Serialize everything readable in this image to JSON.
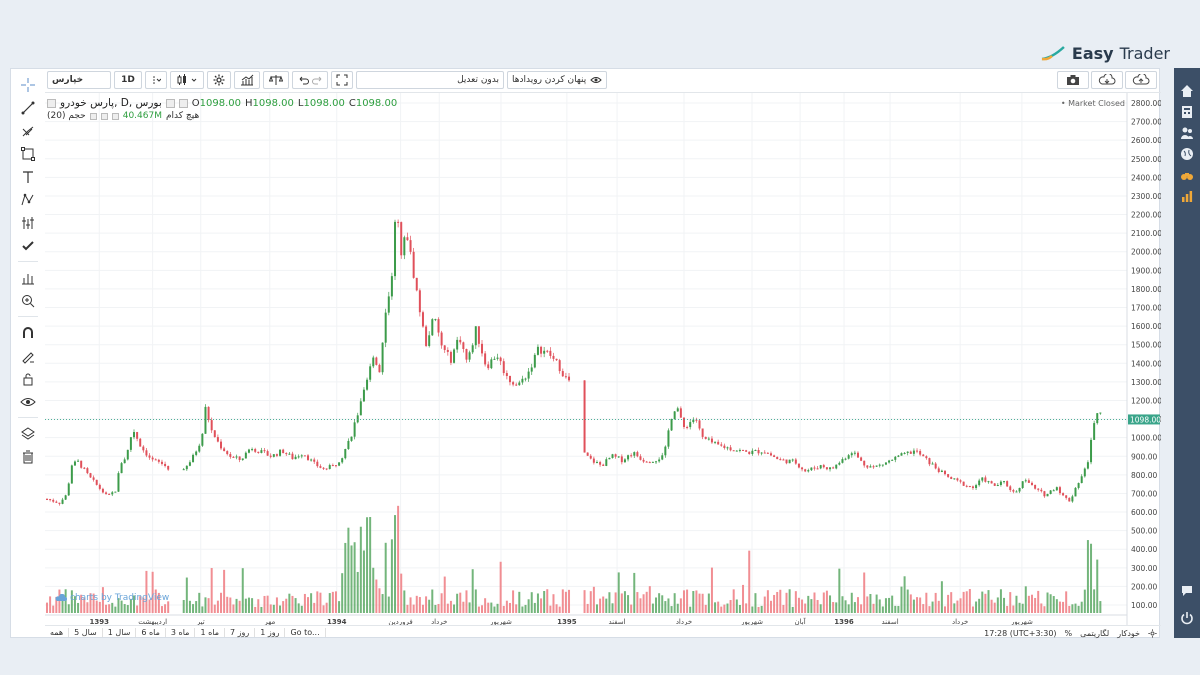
{
  "brand": {
    "part1": "Easy",
    "part2": "Trader",
    "accent": "#2aa9a0"
  },
  "toolbar": {
    "symbol": "خپارس",
    "interval": "1D",
    "adjust_label": "بدون تعدیل",
    "hide_events_label": "پنهان کردن رویدادها"
  },
  "legend": {
    "title": "پارس خودرو, D, بورس",
    "open_label": "O",
    "open": "1098.00",
    "high_label": "H",
    "high": "1098.00",
    "low_label": "L",
    "low": "1098.00",
    "close_label": "C",
    "close": "1098.00",
    "volume_label": "حجم (20)",
    "volume_sub": "هیچ کدام",
    "volume_value": "40.467M"
  },
  "market_status": "Market Closed",
  "watermark": "charts by TradingView",
  "chart_data": {
    "type": "candlestick",
    "ylim": [
      0,
      2850
    ],
    "y_ticks": [
      100,
      200,
      300,
      400,
      500,
      600,
      700,
      800,
      900,
      1000,
      1100,
      1200,
      1300,
      1400,
      1500,
      1600,
      1700,
      1800,
      1900,
      2000,
      2100,
      2200,
      2300,
      2400,
      2500,
      2600,
      2700,
      2800
    ],
    "y_tick_labels": [
      "100.00",
      "200.00",
      "300.00",
      "400.00",
      "500.00",
      "600.00",
      "700.00",
      "800.00",
      "900.00",
      "1000.00",
      "1100.00",
      "1200.00",
      "1300.00",
      "1400.00",
      "1500.00",
      "1600.00",
      "1700.00",
      "1800.00",
      "1900.00",
      "2000.00",
      "2100.00",
      "2200.00",
      "2300.00",
      "2400.00",
      "2500.00",
      "2600.00",
      "2700.00",
      "2800.00"
    ],
    "last_price": 1098,
    "last_price_label": "1098.00",
    "x_labels": [
      {
        "t": 0.05,
        "label": "1393",
        "bold": true
      },
      {
        "t": 0.101,
        "label": "اردیبهشت"
      },
      {
        "t": 0.147,
        "label": "تیر"
      },
      {
        "t": 0.213,
        "label": "مهر"
      },
      {
        "t": 0.277,
        "label": "1394",
        "bold": true
      },
      {
        "t": 0.338,
        "label": "فروردین"
      },
      {
        "t": 0.375,
        "label": "خرداد"
      },
      {
        "t": 0.434,
        "label": "شهریور"
      },
      {
        "t": 0.497,
        "label": "1395",
        "bold": true
      },
      {
        "t": 0.545,
        "label": "اسفند"
      },
      {
        "t": 0.609,
        "label": "خرداد"
      },
      {
        "t": 0.674,
        "label": "شهریور"
      },
      {
        "t": 0.72,
        "label": "آبان"
      },
      {
        "t": 0.762,
        "label": "1396",
        "bold": true
      },
      {
        "t": 0.806,
        "label": "اسفند"
      },
      {
        "t": 0.873,
        "label": "خرداد"
      },
      {
        "t": 0.932,
        "label": "شهریور"
      }
    ],
    "price_path": [
      [
        0.0,
        670
      ],
      [
        0.012,
        650
      ],
      [
        0.02,
        700
      ],
      [
        0.022,
        850
      ],
      [
        0.03,
        870
      ],
      [
        0.04,
        790
      ],
      [
        0.05,
        730
      ],
      [
        0.058,
        680
      ],
      [
        0.066,
        720
      ],
      [
        0.07,
        860
      ],
      [
        0.076,
        900
      ],
      [
        0.082,
        1050
      ],
      [
        0.09,
        950
      ],
      [
        0.1,
        880
      ],
      [
        0.11,
        860
      ],
      [
        0.12,
        820
      ],
      [
        0.126,
        780
      ],
      [
        0.132,
        830
      ],
      [
        0.14,
        900
      ],
      [
        0.148,
        1000
      ],
      [
        0.152,
        1180
      ],
      [
        0.156,
        1050
      ],
      [
        0.165,
        960
      ],
      [
        0.175,
        900
      ],
      [
        0.185,
        880
      ],
      [
        0.195,
        950
      ],
      [
        0.205,
        920
      ],
      [
        0.215,
        900
      ],
      [
        0.225,
        930
      ],
      [
        0.235,
        890
      ],
      [
        0.245,
        920
      ],
      [
        0.255,
        860
      ],
      [
        0.265,
        830
      ],
      [
        0.275,
        850
      ],
      [
        0.282,
        900
      ],
      [
        0.29,
        1000
      ],
      [
        0.3,
        1180
      ],
      [
        0.306,
        1300
      ],
      [
        0.312,
        1450
      ],
      [
        0.318,
        1350
      ],
      [
        0.322,
        1600
      ],
      [
        0.326,
        1750
      ],
      [
        0.33,
        1900
      ],
      [
        0.334,
        2250
      ],
      [
        0.338,
        2000
      ],
      [
        0.344,
        2100
      ],
      [
        0.35,
        1900
      ],
      [
        0.356,
        1700
      ],
      [
        0.362,
        1500
      ],
      [
        0.37,
        1650
      ],
      [
        0.378,
        1480
      ],
      [
        0.386,
        1420
      ],
      [
        0.394,
        1550
      ],
      [
        0.402,
        1400
      ],
      [
        0.41,
        1580
      ],
      [
        0.42,
        1380
      ],
      [
        0.43,
        1450
      ],
      [
        0.44,
        1320
      ],
      [
        0.45,
        1280
      ],
      [
        0.46,
        1350
      ],
      [
        0.47,
        1480
      ],
      [
        0.48,
        1450
      ],
      [
        0.49,
        1380
      ],
      [
        0.496,
        1320
      ],
      [
        0.5,
        1300
      ],
      [
        0.512,
        920
      ],
      [
        0.52,
        880
      ],
      [
        0.53,
        850
      ],
      [
        0.54,
        900
      ],
      [
        0.55,
        880
      ],
      [
        0.56,
        920
      ],
      [
        0.57,
        880
      ],
      [
        0.58,
        880
      ],
      [
        0.59,
        900
      ],
      [
        0.596,
        1100
      ],
      [
        0.602,
        1180
      ],
      [
        0.608,
        1050
      ],
      [
        0.614,
        1080
      ],
      [
        0.62,
        1110
      ],
      [
        0.626,
        1000
      ],
      [
        0.64,
        960
      ],
      [
        0.655,
        940
      ],
      [
        0.67,
        920
      ],
      [
        0.685,
        930
      ],
      [
        0.7,
        880
      ],
      [
        0.715,
        870
      ],
      [
        0.725,
        820
      ],
      [
        0.74,
        850
      ],
      [
        0.75,
        830
      ],
      [
        0.76,
        880
      ],
      [
        0.77,
        930
      ],
      [
        0.78,
        860
      ],
      [
        0.79,
        840
      ],
      [
        0.8,
        860
      ],
      [
        0.815,
        900
      ],
      [
        0.83,
        930
      ],
      [
        0.845,
        860
      ],
      [
        0.86,
        790
      ],
      [
        0.872,
        760
      ],
      [
        0.885,
        730
      ],
      [
        0.895,
        780
      ],
      [
        0.905,
        740
      ],
      [
        0.915,
        760
      ],
      [
        0.925,
        700
      ],
      [
        0.935,
        780
      ],
      [
        0.945,
        720
      ],
      [
        0.955,
        690
      ],
      [
        0.965,
        740
      ],
      [
        0.972,
        680
      ],
      [
        0.978,
        660
      ],
      [
        0.984,
        740
      ],
      [
        0.99,
        800
      ],
      [
        0.995,
        860
      ],
      [
        1.0,
        1050
      ],
      [
        1.006,
        1150
      ],
      [
        1.01,
        1098
      ]
    ]
  },
  "bottom_bar": {
    "ranges": [
      "همه",
      "5 سال",
      "1 سال",
      "6 ماه",
      "3 ماه",
      "1 ماه",
      "7 روز",
      "1 روز"
    ],
    "goto": "Go to...",
    "time": "17:28 (UTC+3:30)",
    "percent": "%",
    "log": "لگاریتمی",
    "auto": "خودکار"
  },
  "colors": {
    "up": "#3c9b4a",
    "down": "#e0505a",
    "vol_up": "#5aa864",
    "vol_down": "#ee7a80",
    "price_line": "#3aa58a",
    "rail": "#3c4f67",
    "rail_icon": "#e9eef4",
    "rail_accent": "#f0a838"
  },
  "rail_icons": [
    "home-icon",
    "calculator-icon",
    "people-icon",
    "globe-icon",
    "binoculars-icon",
    "bar-chart-icon"
  ]
}
